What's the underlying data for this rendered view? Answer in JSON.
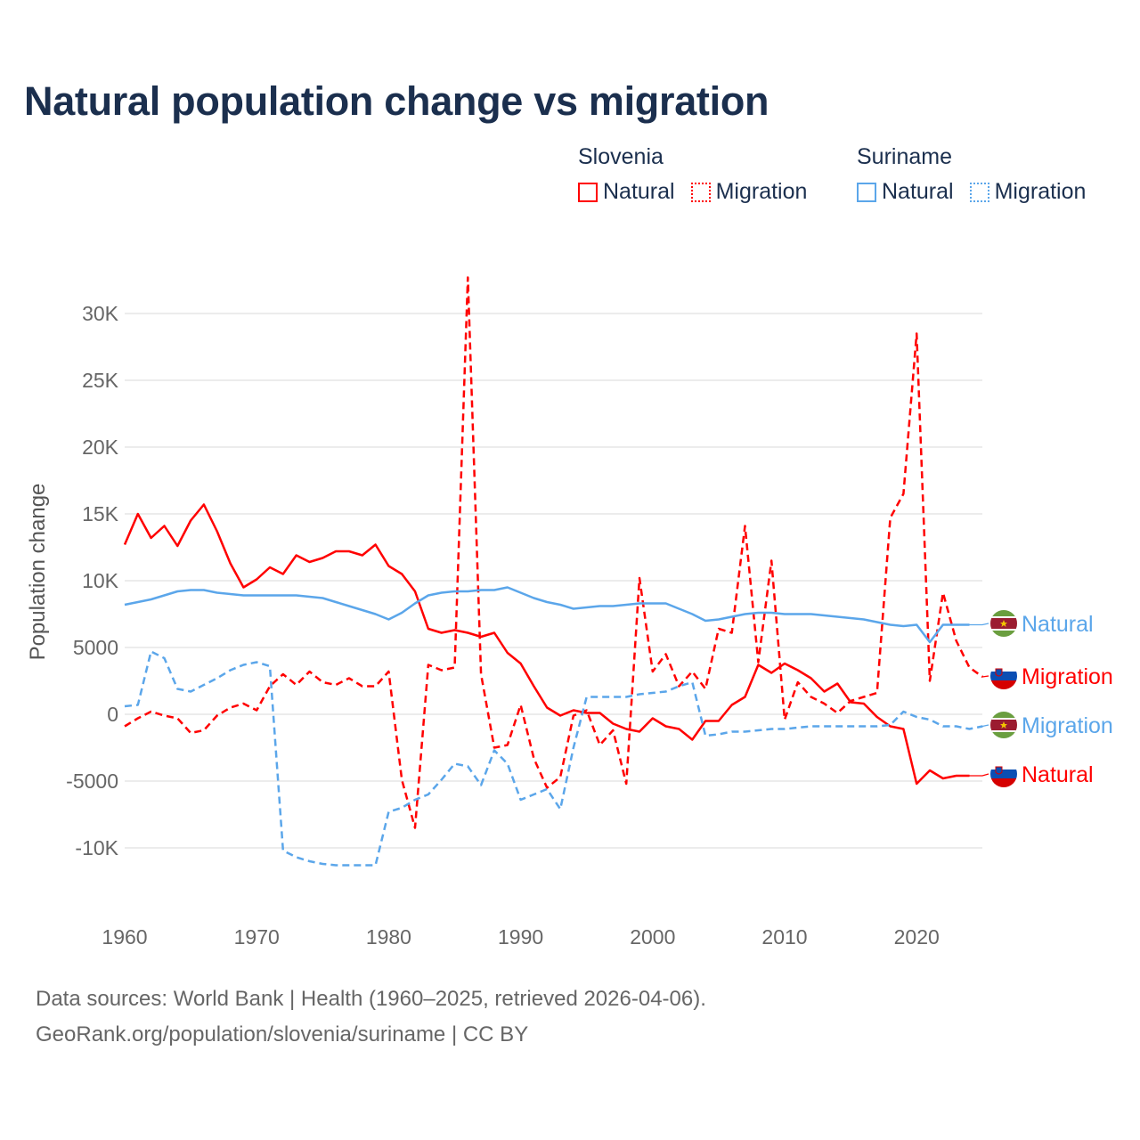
{
  "title": "Natural population change vs migration",
  "legend": {
    "groups": [
      {
        "name": "Slovenia",
        "items": [
          "Natural",
          "Migration"
        ],
        "color": "#ff0000"
      },
      {
        "name": "Suriname",
        "items": [
          "Natural",
          "Migration"
        ],
        "color": "#5ba6ea"
      }
    ]
  },
  "footer": {
    "source": "Data sources: World Bank | Health (1960–2025, retrieved 2026-04-06).",
    "link": "GeoRank.org/population/slovenia/suriname | CC BY"
  },
  "chart_data": {
    "type": "line",
    "title": "Natural population change vs migration",
    "xlabel": "",
    "ylabel": "Population change",
    "xlim": [
      1960,
      2025
    ],
    "ylim": [
      -13000,
      33000
    ],
    "x_ticks": [
      1960,
      1970,
      1980,
      1990,
      2000,
      2010,
      2020
    ],
    "x_tick_labels": [
      "1960",
      "1970",
      "1980",
      "1990",
      "2000",
      "2010",
      "2020"
    ],
    "y_ticks": [
      -10000,
      -5000,
      0,
      5000,
      10000,
      15000,
      20000,
      25000,
      30000
    ],
    "y_tick_labels": [
      "-10K",
      "-5000",
      "0",
      "5000",
      "10K",
      "15K",
      "20K",
      "25K",
      "30K"
    ],
    "grid": true,
    "legend_position": "top-right",
    "x_start": 1960,
    "series": [
      {
        "name": "Slovenia Natural",
        "label": "Natural",
        "country": "Slovenia",
        "color": "#ff0000",
        "dashed": false,
        "values": [
          12700,
          15000,
          13200,
          14100,
          12600,
          14500,
          15700,
          13700,
          11300,
          9500,
          10100,
          11000,
          10500,
          11900,
          11400,
          11700,
          12200,
          12200,
          11900,
          12700,
          11100,
          10500,
          9200,
          6400,
          6100,
          6300,
          6100,
          5800,
          6100,
          4600,
          3800,
          2100,
          500,
          -100,
          300,
          100,
          100,
          -700,
          -1100,
          -1300,
          -300,
          -900,
          -1100,
          -1900,
          -500,
          -500,
          700,
          1300,
          3700,
          3100,
          3800,
          3300,
          2700,
          1700,
          2300,
          900,
          800,
          -200,
          -900,
          -1100,
          -5200,
          -4200,
          -4800,
          -4600,
          -4600
        ]
      },
      {
        "name": "Slovenia Migration",
        "label": "Migration",
        "country": "Slovenia",
        "color": "#ff0000",
        "dashed": true,
        "values": [
          -900,
          -300,
          200,
          -100,
          -300,
          -1400,
          -1200,
          -100,
          500,
          800,
          300,
          2100,
          3000,
          2200,
          3200,
          2400,
          2200,
          2700,
          2100,
          2100,
          3200,
          -4900,
          -8500,
          3700,
          3300,
          3500,
          32700,
          3000,
          -2500,
          -2300,
          700,
          -3300,
          -5500,
          -4700,
          -100,
          300,
          -2300,
          -1200,
          -5200,
          10200,
          3200,
          4500,
          2100,
          3200,
          1900,
          6400,
          6100,
          14100,
          3900,
          11500,
          -400,
          2400,
          1300,
          800,
          100,
          1000,
          1300,
          1600,
          14700,
          16500,
          28500,
          2500,
          9100,
          5500,
          3500,
          2800
        ]
      },
      {
        "name": "Suriname Natural",
        "label": "Natural",
        "country": "Suriname",
        "color": "#5ba6ea",
        "dashed": false,
        "values": [
          8200,
          8400,
          8600,
          8900,
          9200,
          9300,
          9300,
          9100,
          9000,
          8900,
          8900,
          8900,
          8900,
          8900,
          8800,
          8700,
          8400,
          8100,
          7800,
          7500,
          7100,
          7600,
          8300,
          8900,
          9100,
          9200,
          9200,
          9300,
          9300,
          9500,
          9100,
          8700,
          8400,
          8200,
          7900,
          8000,
          8100,
          8100,
          8200,
          8300,
          8300,
          8300,
          7900,
          7500,
          7000,
          7100,
          7300,
          7500,
          7600,
          7600,
          7500,
          7500,
          7500,
          7400,
          7300,
          7200,
          7100,
          6900,
          6700,
          6600,
          6700,
          5400,
          6700,
          6700,
          6700
        ]
      },
      {
        "name": "Suriname Migration",
        "label": "Migration",
        "country": "Suriname",
        "color": "#5ba6ea",
        "dashed": true,
        "values": [
          600,
          700,
          4700,
          4200,
          1900,
          1700,
          2200,
          2700,
          3300,
          3700,
          3900,
          3600,
          -10200,
          -10700,
          -11000,
          -11200,
          -11300,
          -11300,
          -11300,
          -11300,
          -7300,
          -7000,
          -6400,
          -6000,
          -4900,
          -3700,
          -3900,
          -5300,
          -2700,
          -3700,
          -6400,
          -6000,
          -5600,
          -7100,
          -2500,
          1300,
          1300,
          1300,
          1300,
          1500,
          1600,
          1700,
          2100,
          2400,
          -1600,
          -1500,
          -1300,
          -1300,
          -1200,
          -1100,
          -1100,
          -1000,
          -900,
          -900,
          -900,
          -900,
          -900,
          -900,
          -800,
          200,
          -200,
          -400,
          -900,
          -900,
          -1100,
          -900
        ]
      }
    ],
    "end_labels": [
      {
        "series": 2,
        "text": "Natural",
        "flag": "Suriname"
      },
      {
        "series": 1,
        "text": "Migration",
        "flag": "Slovenia"
      },
      {
        "series": 3,
        "text": "Migration",
        "flag": "Suriname"
      },
      {
        "series": 0,
        "text": "Natural",
        "flag": "Slovenia"
      }
    ]
  }
}
